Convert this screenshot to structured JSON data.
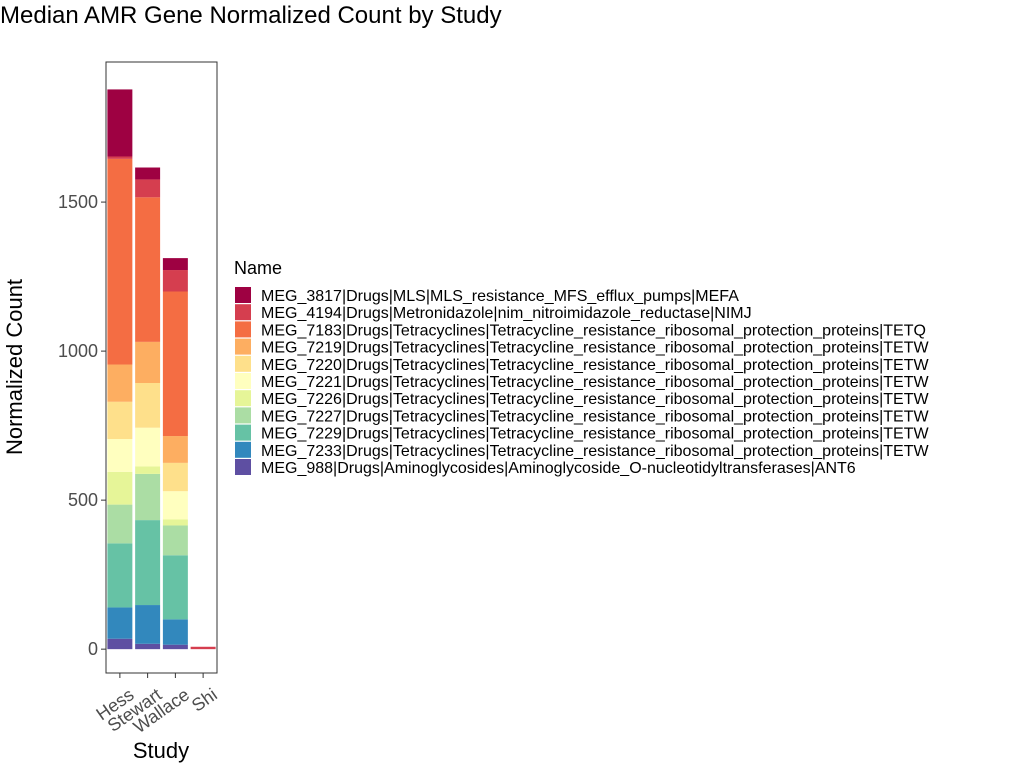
{
  "chart_data": {
    "type": "bar",
    "stacked": true,
    "title": "Median AMR Gene Normalized Count by Study",
    "xlabel": "Study",
    "ylabel": "Normalized Count",
    "ylim": [
      -80,
      1970
    ],
    "yticks": [
      0,
      500,
      1000,
      1500
    ],
    "grid": false,
    "legend_title": "Name",
    "legend_position": "right",
    "categories": [
      "Hess",
      "Stewart",
      "Wallace",
      "Shi"
    ],
    "series": [
      {
        "name": "MEG_3817|Drugs|MLS|MLS_resistance_MFS_efflux_pumps|MEFA",
        "color": "#9E0142",
        "values": [
          225,
          40,
          40,
          0
        ]
      },
      {
        "name": "MEG_4194|Drugs|Metronidazole|nim_nitroimidazole_reductase|NIMJ",
        "color": "#D53E4F",
        "values": [
          8,
          60,
          72,
          8
        ]
      },
      {
        "name": "MEG_7183|Drugs|Tetracyclines|Tetracycline_resistance_ribosomal_protection_proteins|TETQ",
        "color": "#F46D43",
        "values": [
          690,
          485,
          485,
          0
        ]
      },
      {
        "name": "MEG_7219|Drugs|Tetracyclines|Tetracycline_resistance_ribosomal_protection_proteins|TETW",
        "color": "#FDAE61",
        "values": [
          125,
          138,
          90,
          0
        ]
      },
      {
        "name": "MEG_7220|Drugs|Tetracyclines|Tetracycline_resistance_ribosomal_protection_proteins|TETW",
        "color": "#FEE08B",
        "values": [
          125,
          150,
          95,
          0
        ]
      },
      {
        "name": "MEG_7221|Drugs|Tetracyclines|Tetracycline_resistance_ribosomal_protection_proteins|TETW",
        "color": "#FFFFBF",
        "values": [
          110,
          130,
          95,
          0
        ]
      },
      {
        "name": "MEG_7226|Drugs|Tetracyclines|Tetracycline_resistance_ribosomal_protection_proteins|TETW",
        "color": "#E6F598",
        "values": [
          110,
          25,
          20,
          0
        ]
      },
      {
        "name": "MEG_7227|Drugs|Tetracyclines|Tetracycline_resistance_ribosomal_protection_proteins|TETW",
        "color": "#ABDDA4",
        "values": [
          130,
          155,
          100,
          0
        ]
      },
      {
        "name": "MEG_7229|Drugs|Tetracyclines|Tetracycline_resistance_ribosomal_protection_proteins|TETW",
        "color": "#66C2A5",
        "values": [
          215,
          285,
          215,
          0
        ]
      },
      {
        "name": "MEG_7233|Drugs|Tetracyclines|Tetracycline_resistance_ribosomal_protection_proteins|TETW",
        "color": "#3288BD",
        "values": [
          105,
          130,
          85,
          0
        ]
      },
      {
        "name": "MEG_988|Drugs|Aminoglycosides|Aminoglycoside_O-nucleotidyltransferases|ANT6",
        "color": "#5E4FA2",
        "values": [
          35,
          18,
          15,
          0
        ]
      }
    ]
  }
}
